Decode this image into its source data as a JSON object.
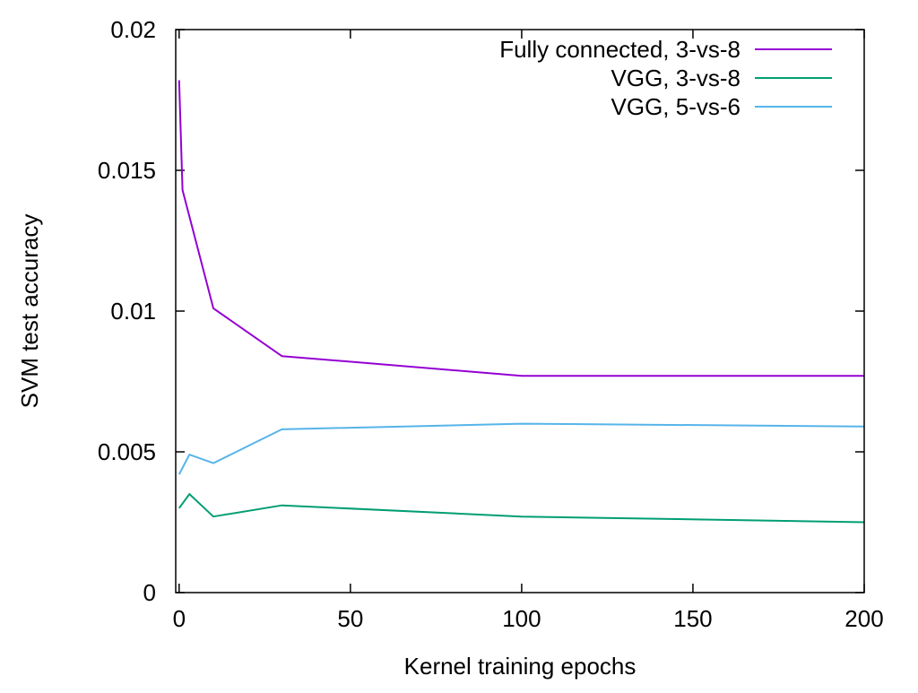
{
  "chart_data": {
    "type": "line",
    "title": "",
    "xlabel": "Kernel training epochs",
    "ylabel": "SVM test accuracy",
    "xlim": [
      -1,
      200
    ],
    "ylim": [
      0,
      0.02
    ],
    "x_ticks": [
      0,
      50,
      100,
      150,
      200
    ],
    "x_tick_labels": [
      "0",
      "50",
      "100",
      "150",
      "200"
    ],
    "y_ticks": [
      0,
      0.005,
      0.01,
      0.015,
      0.02
    ],
    "y_tick_labels": [
      "0",
      "0.005",
      "0.01",
      "0.015",
      "0.02"
    ],
    "grid": false,
    "legend_position": "top-right",
    "series": [
      {
        "name": "Fully connected, 3-vs-8",
        "color": "#9400d3",
        "x": [
          0,
          1,
          10,
          30,
          100,
          200
        ],
        "y": [
          0.0182,
          0.0143,
          0.0101,
          0.0084,
          0.0077,
          0.0077
        ]
      },
      {
        "name": "VGG, 3-vs-8",
        "color": "#009e73",
        "x": [
          0,
          3,
          10,
          30,
          100,
          200
        ],
        "y": [
          0.003,
          0.0035,
          0.0027,
          0.0031,
          0.0027,
          0.0025
        ]
      },
      {
        "name": "VGG, 5-vs-6",
        "color": "#56b4e9",
        "x": [
          0,
          3,
          10,
          30,
          100,
          200
        ],
        "y": [
          0.0042,
          0.0049,
          0.0046,
          0.0058,
          0.006,
          0.0059
        ]
      }
    ]
  }
}
